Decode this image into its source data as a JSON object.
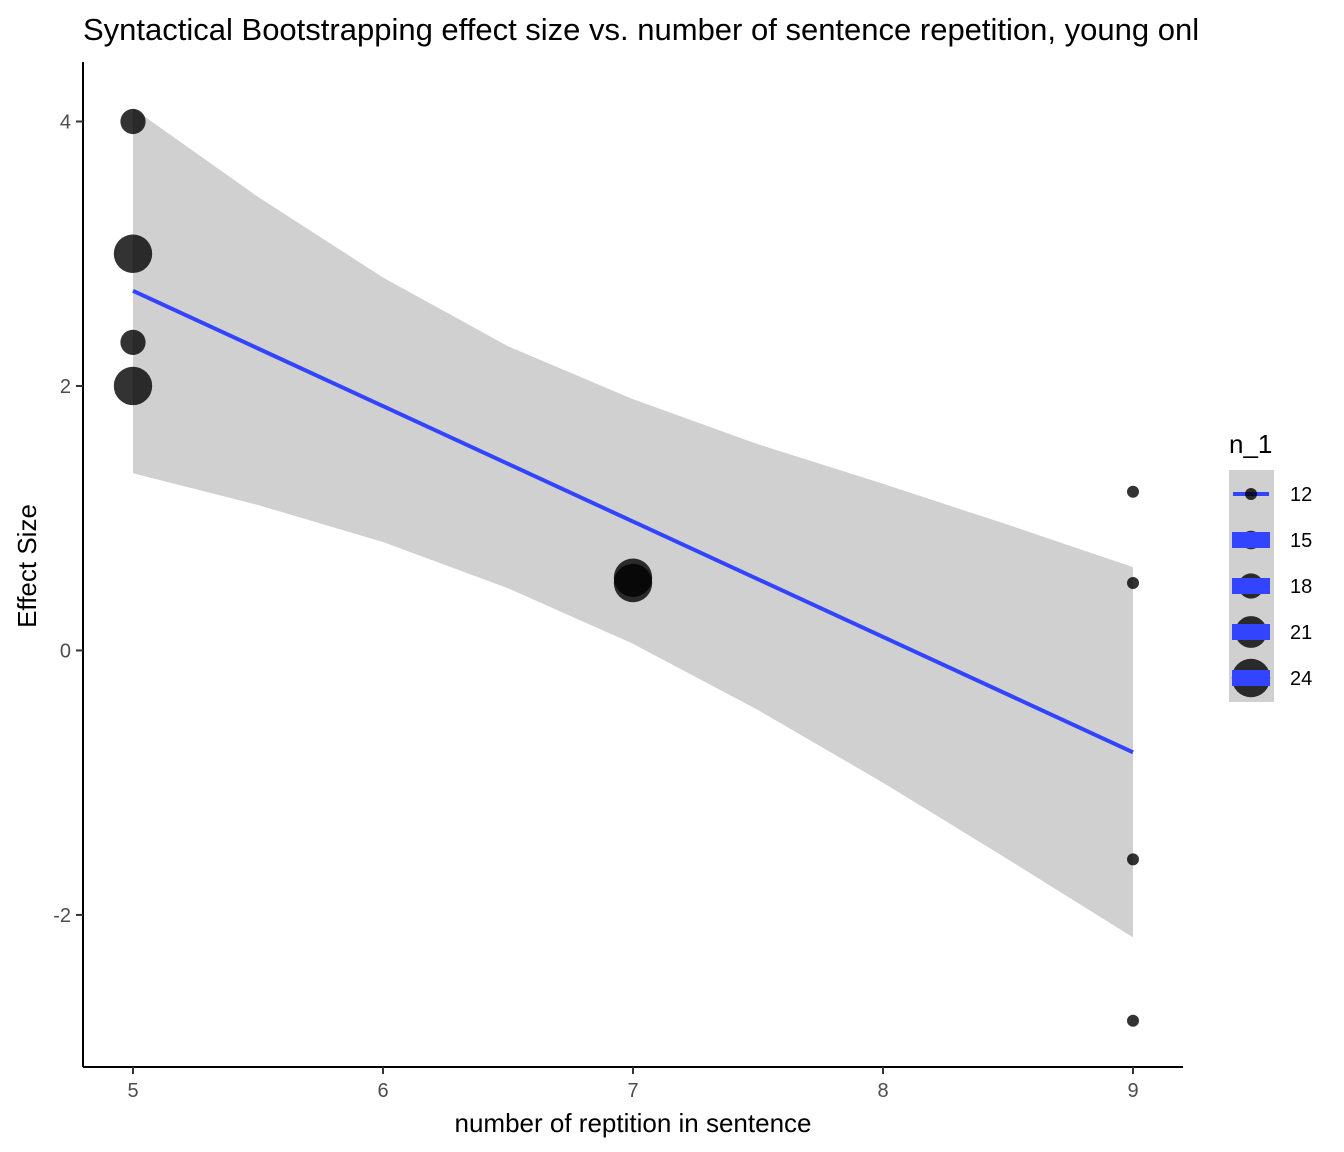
{
  "chart_data": {
    "type": "scatter",
    "title": "Syntactical Bootstrapping effect size vs. number of sentence repetition, young onl",
    "xlabel": "number of reptition in sentence",
    "ylabel": "Effect Size",
    "xlim": [
      4.8,
      9.2
    ],
    "ylim": [
      -3.15,
      4.45
    ],
    "x_ticks": [
      5,
      6,
      7,
      8,
      9
    ],
    "y_ticks": [
      -2,
      0,
      2,
      4
    ],
    "grid": false,
    "points": [
      {
        "x": 5,
        "y": 4.0,
        "n": 18
      },
      {
        "x": 5,
        "y": 3.0,
        "n": 24
      },
      {
        "x": 5,
        "y": 2.33,
        "n": 18
      },
      {
        "x": 5,
        "y": 2.0,
        "n": 24
      },
      {
        "x": 7,
        "y": 0.55,
        "n": 24
      },
      {
        "x": 7,
        "y": 0.51,
        "n": 24
      },
      {
        "x": 9,
        "y": 1.2,
        "n": 12
      },
      {
        "x": 9,
        "y": 0.51,
        "n": 12
      },
      {
        "x": 9,
        "y": -1.58,
        "n": 12
      },
      {
        "x": 9,
        "y": -2.8,
        "n": 12
      }
    ],
    "fit_line": {
      "x": [
        5,
        9
      ],
      "y": [
        2.72,
        -0.77
      ],
      "color": "#3344ff"
    },
    "confidence_band": {
      "x": [
        5,
        5.5,
        6,
        6.5,
        7,
        7.5,
        8,
        8.5,
        9
      ],
      "lower": [
        1.34,
        1.1,
        0.82,
        0.47,
        0.05,
        -0.45,
        -1.0,
        -1.58,
        -2.17
      ],
      "upper": [
        4.1,
        3.43,
        2.82,
        2.3,
        1.9,
        1.56,
        1.26,
        0.95,
        0.63
      ],
      "color": "#d0d0d0"
    },
    "legend": {
      "title": "n_1",
      "position": "right",
      "entries": [
        {
          "label": "12",
          "size": 12
        },
        {
          "label": "15",
          "size": 15
        },
        {
          "label": "18",
          "size": 18
        },
        {
          "label": "21",
          "size": 21
        },
        {
          "label": "24",
          "size": 24
        }
      ]
    }
  }
}
